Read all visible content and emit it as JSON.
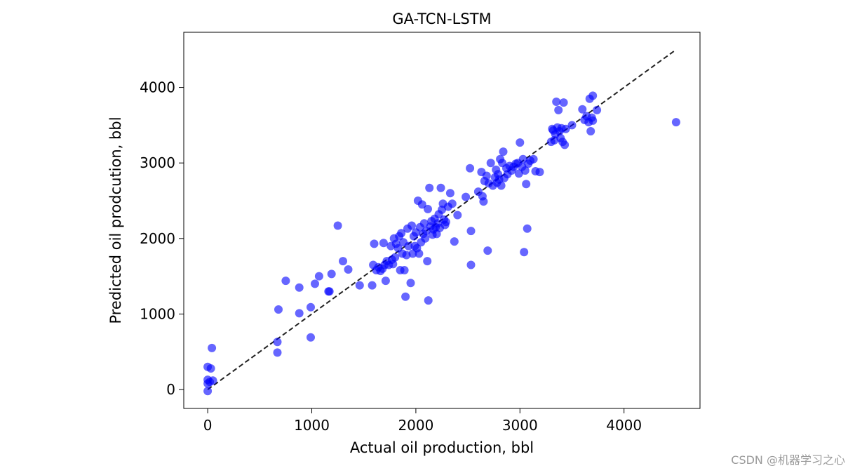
{
  "chart_data": {
    "type": "scatter",
    "title": "GA-TCN-LSTM",
    "xlabel": "Actual oil production, bbl",
    "ylabel": "Predicted oil prodcution, bbl",
    "xlim": [
      -230,
      4730
    ],
    "ylim": [
      -250,
      4730
    ],
    "xticks": [
      0,
      1000,
      2000,
      3000,
      4000
    ],
    "xtick_labels": [
      "0",
      "1000",
      "2000",
      "3000",
      "4000"
    ],
    "yticks": [
      0,
      1000,
      2000,
      3000,
      4000
    ],
    "ytick_labels": [
      "0",
      "1000",
      "2000",
      "3000",
      "4000"
    ],
    "grid": false,
    "point_color": "#0000ff",
    "reference_line": {
      "style": "dashed",
      "color": "#222222",
      "x": [
        0,
        4500
      ],
      "y": [
        0,
        4500
      ]
    },
    "series": [
      {
        "points": [
          [
            0,
            -20
          ],
          [
            0,
            80
          ],
          [
            0,
            130
          ],
          [
            0,
            300
          ],
          [
            30,
            280
          ],
          [
            20,
            100
          ],
          [
            50,
            120
          ],
          [
            40,
            550
          ],
          [
            670,
            630
          ],
          [
            670,
            490
          ],
          [
            680,
            1060
          ],
          [
            750,
            1440
          ],
          [
            880,
            1350
          ],
          [
            880,
            1010
          ],
          [
            990,
            1090
          ],
          [
            990,
            690
          ],
          [
            1030,
            1400
          ],
          [
            1070,
            1500
          ],
          [
            1160,
            1300
          ],
          [
            1170,
            1300
          ],
          [
            1190,
            1530
          ],
          [
            1250,
            2170
          ],
          [
            1300,
            1700
          ],
          [
            1350,
            1590
          ],
          [
            1460,
            1380
          ],
          [
            1580,
            1380
          ],
          [
            1590,
            1650
          ],
          [
            1600,
            1930
          ],
          [
            1620,
            1580
          ],
          [
            1640,
            1620
          ],
          [
            1660,
            1570
          ],
          [
            1680,
            1600
          ],
          [
            1690,
            1940
          ],
          [
            1700,
            1650
          ],
          [
            1710,
            1440
          ],
          [
            1720,
            1700
          ],
          [
            1740,
            1650
          ],
          [
            1760,
            1900
          ],
          [
            1770,
            1720
          ],
          [
            1780,
            1660
          ],
          [
            1790,
            2000
          ],
          [
            1800,
            1750
          ],
          [
            1810,
            1930
          ],
          [
            1830,
            1870
          ],
          [
            1840,
            2030
          ],
          [
            1850,
            1580
          ],
          [
            1860,
            2070
          ],
          [
            1870,
            1800
          ],
          [
            1880,
            1950
          ],
          [
            1890,
            1580
          ],
          [
            1900,
            1230
          ],
          [
            1910,
            1780
          ],
          [
            1920,
            2130
          ],
          [
            1930,
            1900
          ],
          [
            1950,
            1410
          ],
          [
            1960,
            2170
          ],
          [
            1970,
            1800
          ],
          [
            1980,
            2030
          ],
          [
            1990,
            1900
          ],
          [
            2000,
            2080
          ],
          [
            2010,
            1870
          ],
          [
            2020,
            2500
          ],
          [
            2030,
            1800
          ],
          [
            2040,
            2150
          ],
          [
            2050,
            1950
          ],
          [
            2060,
            2450
          ],
          [
            2070,
            2060
          ],
          [
            2080,
            2200
          ],
          [
            2090,
            2000
          ],
          [
            2100,
            2100
          ],
          [
            2110,
            1700
          ],
          [
            2115,
            2390
          ],
          [
            2120,
            1180
          ],
          [
            2130,
            2670
          ],
          [
            2140,
            2160
          ],
          [
            2150,
            2230
          ],
          [
            2160,
            2050
          ],
          [
            2170,
            2120
          ],
          [
            2180,
            2260
          ],
          [
            2190,
            2150
          ],
          [
            2200,
            2060
          ],
          [
            2210,
            2200
          ],
          [
            2220,
            2320
          ],
          [
            2230,
            2140
          ],
          [
            2240,
            2670
          ],
          [
            2250,
            2380
          ],
          [
            2260,
            2460
          ],
          [
            2270,
            2250
          ],
          [
            2280,
            2180
          ],
          [
            2290,
            2220
          ],
          [
            2310,
            2420
          ],
          [
            2330,
            2600
          ],
          [
            2350,
            2460
          ],
          [
            2370,
            1960
          ],
          [
            2400,
            2310
          ],
          [
            2480,
            2550
          ],
          [
            2520,
            2930
          ],
          [
            2530,
            2100
          ],
          [
            2530,
            1650
          ],
          [
            2600,
            2620
          ],
          [
            2630,
            2880
          ],
          [
            2640,
            2560
          ],
          [
            2650,
            2490
          ],
          [
            2660,
            2760
          ],
          [
            2680,
            2830
          ],
          [
            2690,
            1840
          ],
          [
            2700,
            2730
          ],
          [
            2720,
            3000
          ],
          [
            2740,
            2700
          ],
          [
            2760,
            2810
          ],
          [
            2770,
            2910
          ],
          [
            2780,
            2740
          ],
          [
            2790,
            2850
          ],
          [
            2800,
            2780
          ],
          [
            2810,
            3050
          ],
          [
            2820,
            2700
          ],
          [
            2830,
            3000
          ],
          [
            2840,
            3150
          ],
          [
            2850,
            2800
          ],
          [
            2870,
            2930
          ],
          [
            2880,
            2850
          ],
          [
            2900,
            2960
          ],
          [
            2920,
            2900
          ],
          [
            2940,
            2950
          ],
          [
            2960,
            2990
          ],
          [
            2980,
            3000
          ],
          [
            2990,
            2860
          ],
          [
            3000,
            3270
          ],
          [
            3020,
            2950
          ],
          [
            3030,
            3050
          ],
          [
            3040,
            1820
          ],
          [
            3050,
            2900
          ],
          [
            3060,
            2720
          ],
          [
            3070,
            2130
          ],
          [
            3080,
            2990
          ],
          [
            3100,
            3030
          ],
          [
            3130,
            3050
          ],
          [
            3150,
            2890
          ],
          [
            3190,
            2880
          ],
          [
            3300,
            3280
          ],
          [
            3310,
            3450
          ],
          [
            3320,
            3430
          ],
          [
            3330,
            3300
          ],
          [
            3340,
            3380
          ],
          [
            3350,
            3810
          ],
          [
            3360,
            3470
          ],
          [
            3370,
            3700
          ],
          [
            3380,
            3420
          ],
          [
            3390,
            3330
          ],
          [
            3400,
            3460
          ],
          [
            3410,
            3280
          ],
          [
            3420,
            3800
          ],
          [
            3430,
            3240
          ],
          [
            3440,
            3450
          ],
          [
            3500,
            3500
          ],
          [
            3600,
            3710
          ],
          [
            3620,
            3570
          ],
          [
            3640,
            3620
          ],
          [
            3660,
            3540
          ],
          [
            3670,
            3850
          ],
          [
            3680,
            3420
          ],
          [
            3690,
            3600
          ],
          [
            3700,
            3560
          ],
          [
            3700,
            3890
          ],
          [
            3740,
            3700
          ],
          [
            4500,
            3540
          ]
        ]
      }
    ]
  },
  "watermark": "CSDN @机器学习之心"
}
